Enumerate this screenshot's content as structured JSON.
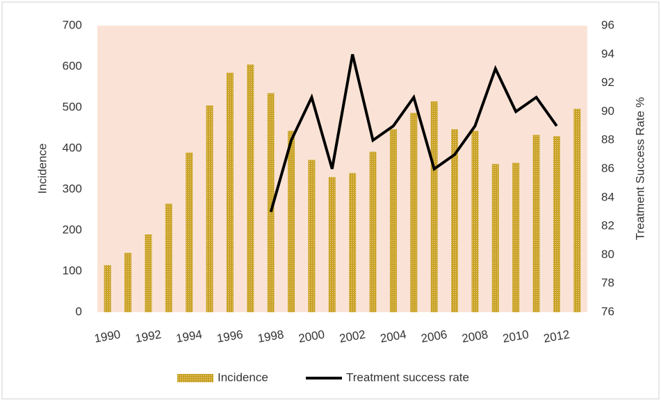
{
  "chart_data": {
    "type": "bar",
    "categories": [
      "1990",
      null,
      "1992",
      null,
      "1994",
      null,
      "1996",
      null,
      "1998",
      null,
      "2000",
      null,
      "2002",
      null,
      "2004",
      null,
      "2006",
      null,
      "2008",
      null,
      "2010",
      null,
      "2012",
      null
    ],
    "series": [
      {
        "name": "Incidence",
        "type": "bar",
        "color": "#c9a227",
        "values": [
          115,
          145,
          190,
          265,
          390,
          505,
          585,
          605,
          535,
          443,
          372,
          330,
          340,
          392,
          447,
          487,
          515,
          447,
          443,
          362,
          365,
          433,
          430,
          497
        ]
      },
      {
        "name": "Treatment success rate",
        "type": "line",
        "axis": "y2",
        "color": "#000000",
        "values": [
          null,
          null,
          null,
          null,
          null,
          null,
          null,
          null,
          83,
          88,
          91,
          86,
          94,
          88,
          89,
          91,
          86,
          87,
          89,
          93,
          90,
          91,
          89,
          null
        ]
      }
    ],
    "y_label": "Incidence",
    "y2_label": "Treatment Success Rate %",
    "ylim": [
      0,
      700
    ],
    "yticks": [
      0,
      100,
      200,
      300,
      400,
      500,
      600,
      700
    ],
    "y2lim": [
      76,
      96
    ],
    "y2ticks": [
      76,
      78,
      80,
      82,
      84,
      86,
      88,
      90,
      92,
      94,
      96
    ],
    "plot_background": "#fae3d6",
    "legend": "bottom"
  }
}
